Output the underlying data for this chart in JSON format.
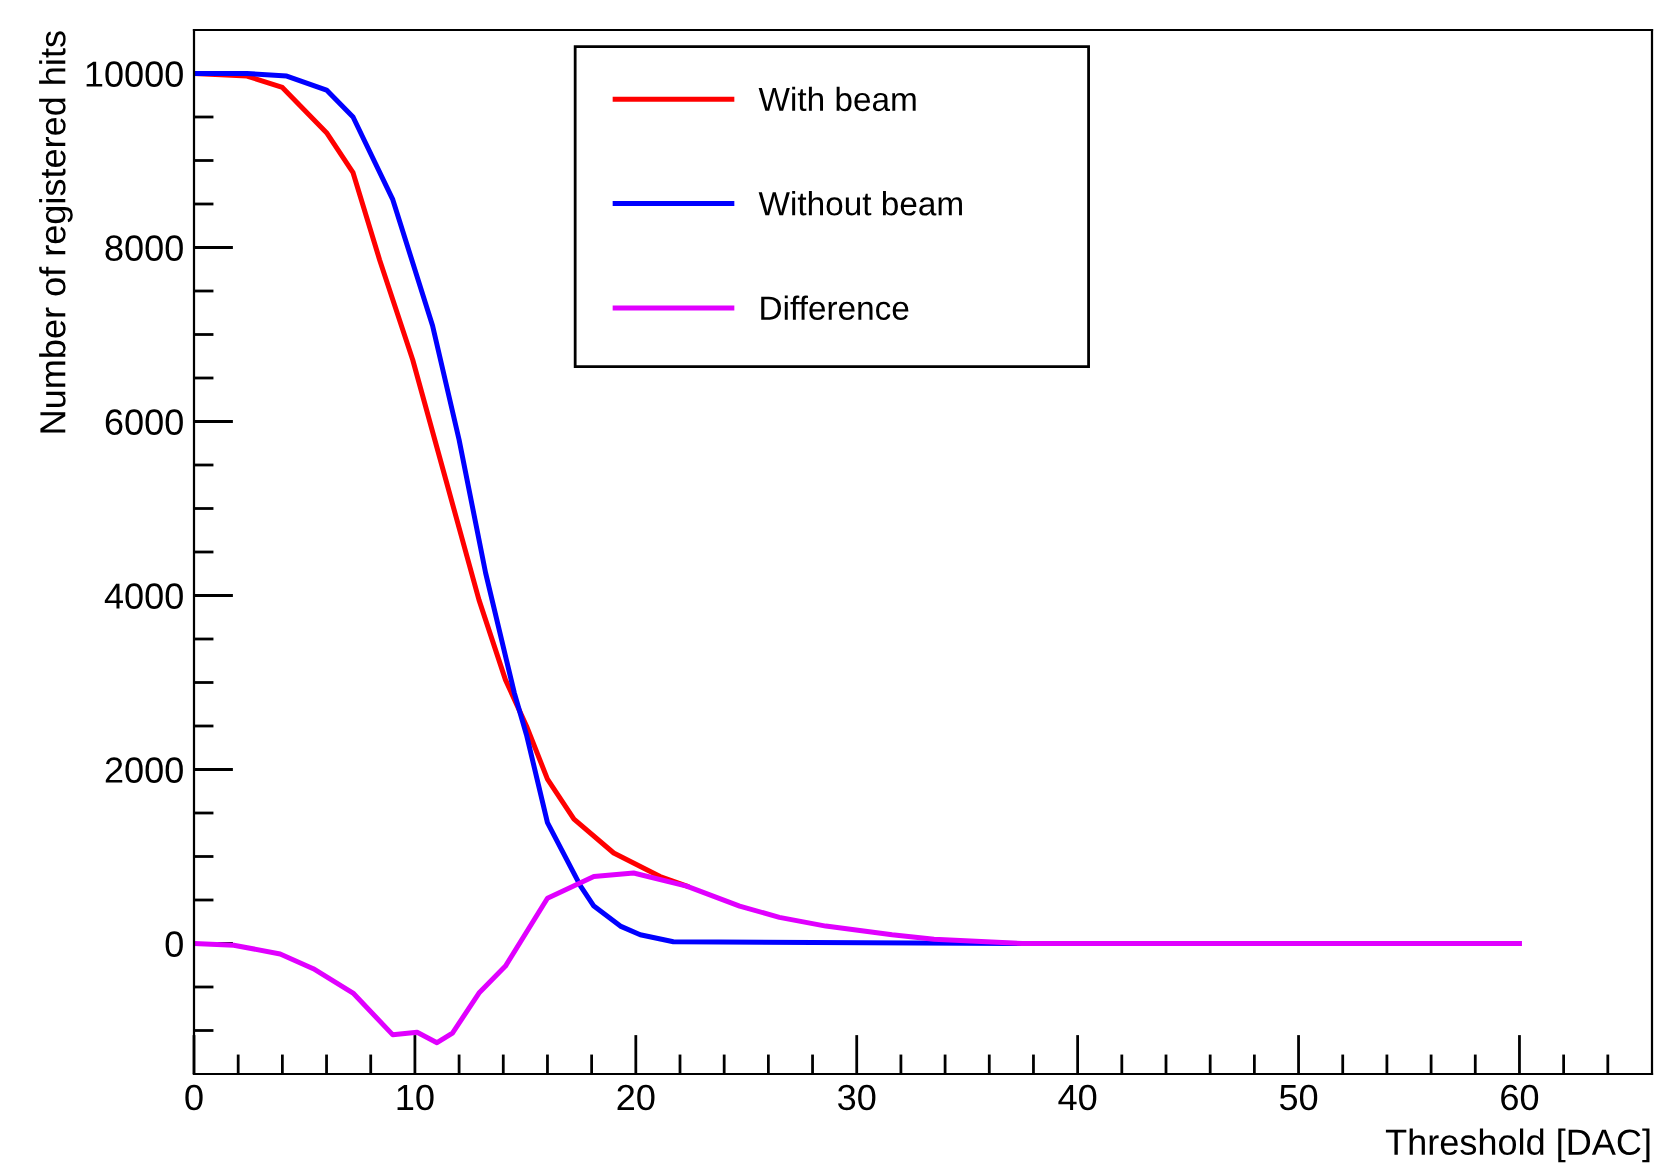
{
  "chart_data": {
    "type": "line",
    "xlabel": "Threshold [DAC]",
    "ylabel": "Number of registered hits",
    "xlim": [
      0,
      66
    ],
    "ylim": [
      -1500,
      10500
    ],
    "xticks": [
      0,
      {
        "value": 2,
        "label": null
      },
      {
        "value": 4,
        "label": null
      },
      {
        "value": 6,
        "label": null
      },
      {
        "value": 8,
        "label": null
      },
      10,
      {
        "value": 12,
        "label": null
      },
      {
        "value": 14,
        "label": null
      },
      {
        "value": 16,
        "label": null
      },
      {
        "value": 18,
        "label": null
      },
      20,
      {
        "value": 22,
        "label": null
      },
      {
        "value": 24,
        "label": null
      },
      {
        "value": 26,
        "label": null
      },
      {
        "value": 28,
        "label": null
      },
      30,
      {
        "value": 32,
        "label": null
      },
      {
        "value": 34,
        "label": null
      },
      {
        "value": 36,
        "label": null
      },
      {
        "value": 38,
        "label": null
      },
      40,
      {
        "value": 42,
        "label": null
      },
      {
        "value": 44,
        "label": null
      },
      {
        "value": 46,
        "label": null
      },
      {
        "value": 48,
        "label": null
      },
      50,
      {
        "value": 52,
        "label": null
      },
      {
        "value": 54,
        "label": null
      },
      {
        "value": 56,
        "label": null
      },
      {
        "value": 58,
        "label": null
      },
      60,
      {
        "value": 62,
        "label": null
      },
      {
        "value": 64,
        "label": null
      }
    ],
    "yticks": [
      {
        "value": -1000,
        "label": null
      },
      {
        "value": -500,
        "label": null
      },
      0,
      {
        "value": 500,
        "label": null
      },
      {
        "value": 1000,
        "label": null
      },
      {
        "value": 1500,
        "label": null
      },
      2000,
      {
        "value": 2500,
        "label": null
      },
      {
        "value": 3000,
        "label": null
      },
      {
        "value": 3500,
        "label": null
      },
      4000,
      {
        "value": 4500,
        "label": null
      },
      {
        "value": 5000,
        "label": null
      },
      {
        "value": 5500,
        "label": null
      },
      6000,
      {
        "value": 6500,
        "label": null
      },
      {
        "value": 7000,
        "label": null
      },
      {
        "value": 7500,
        "label": null
      },
      8000,
      {
        "value": 8500,
        "label": null
      },
      {
        "value": 9000,
        "label": null
      },
      {
        "value": 9500,
        "label": null
      },
      10000
    ],
    "grid": false,
    "legend": "top",
    "marker": "none",
    "line_style": "solid",
    "series": [
      {
        "name": "With beam",
        "color": "#ff0000",
        "x": [
          0,
          2.4,
          4.0,
          6.0,
          7.2,
          8.4,
          9.9,
          11.4,
          12.9,
          14.1,
          15.05,
          16.0,
          17.2,
          19.0,
          21.1,
          22.3
        ],
        "values": [
          10000,
          9970,
          9840,
          9320,
          8860,
          7860,
          6710,
          5330,
          3950,
          3030,
          2500,
          1890,
          1430,
          1040,
          770,
          660
        ]
      },
      {
        "name": "Without beam",
        "color": "#0000ff",
        "x": [
          0,
          2.4,
          4.2,
          6.0,
          7.2,
          9.0,
          10.8,
          12.0,
          13.2,
          14.5,
          15.05,
          16.0,
          17.5,
          18.1,
          19.3,
          20.2,
          21.7,
          37.5
        ],
        "values": [
          10000,
          10000,
          9970,
          9810,
          9500,
          8550,
          7100,
          5790,
          4260,
          2880,
          2400,
          1390,
          660,
          430,
          200,
          100,
          20,
          0
        ]
      },
      {
        "name": "Difference",
        "color": "#e000ff",
        "x": [
          0,
          1.8,
          3.9,
          5.4,
          7.2,
          9.0,
          10.1,
          11.0,
          11.7,
          12.9,
          14.1,
          16.0,
          18.1,
          19.9,
          22.3,
          24.7,
          26.5,
          28.6,
          31.6,
          33.5,
          37.5,
          60
        ],
        "values": [
          0,
          -20,
          -120,
          -290,
          -570,
          -1050,
          -1020,
          -1140,
          -1030,
          -570,
          -260,
          520,
          770,
          810,
          660,
          430,
          300,
          200,
          100,
          50,
          0,
          0
        ]
      }
    ]
  }
}
